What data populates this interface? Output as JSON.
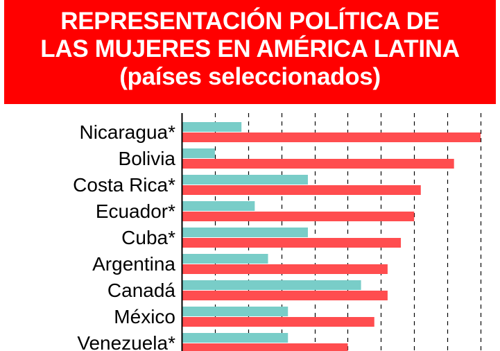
{
  "title_lines": [
    "REPRESENTACIÓN POLÍTICA DE",
    "LAS MUJERES EN AMÉRICA LATINA",
    "(países seleccionados)"
  ],
  "colors": {
    "banner": "#ff0000",
    "series_a": "#79cdc8",
    "series_b": "#ff4d4f",
    "grid": "#000000"
  },
  "chart_data": {
    "type": "bar",
    "orientation": "horizontal",
    "categories": [
      "Nicaragua*",
      "Bolivia",
      "Costa Rica*",
      "Ecuador*",
      "Cuba*",
      "Argentina",
      "Canadá",
      "México",
      "Venezuela*"
    ],
    "series": [
      {
        "values": [
          9,
          5,
          19,
          11,
          19,
          13,
          27,
          16,
          16
        ]
      },
      {
        "values": [
          45,
          41,
          36,
          35,
          33,
          31,
          31,
          29,
          25
        ]
      }
    ],
    "xlim": [
      0,
      45
    ],
    "grid": "vertical dashed",
    "title": "REPRESENTACIÓN POLÍTICA DE LAS MUJERES EN AMÉRICA LATINA (países seleccionados)"
  }
}
